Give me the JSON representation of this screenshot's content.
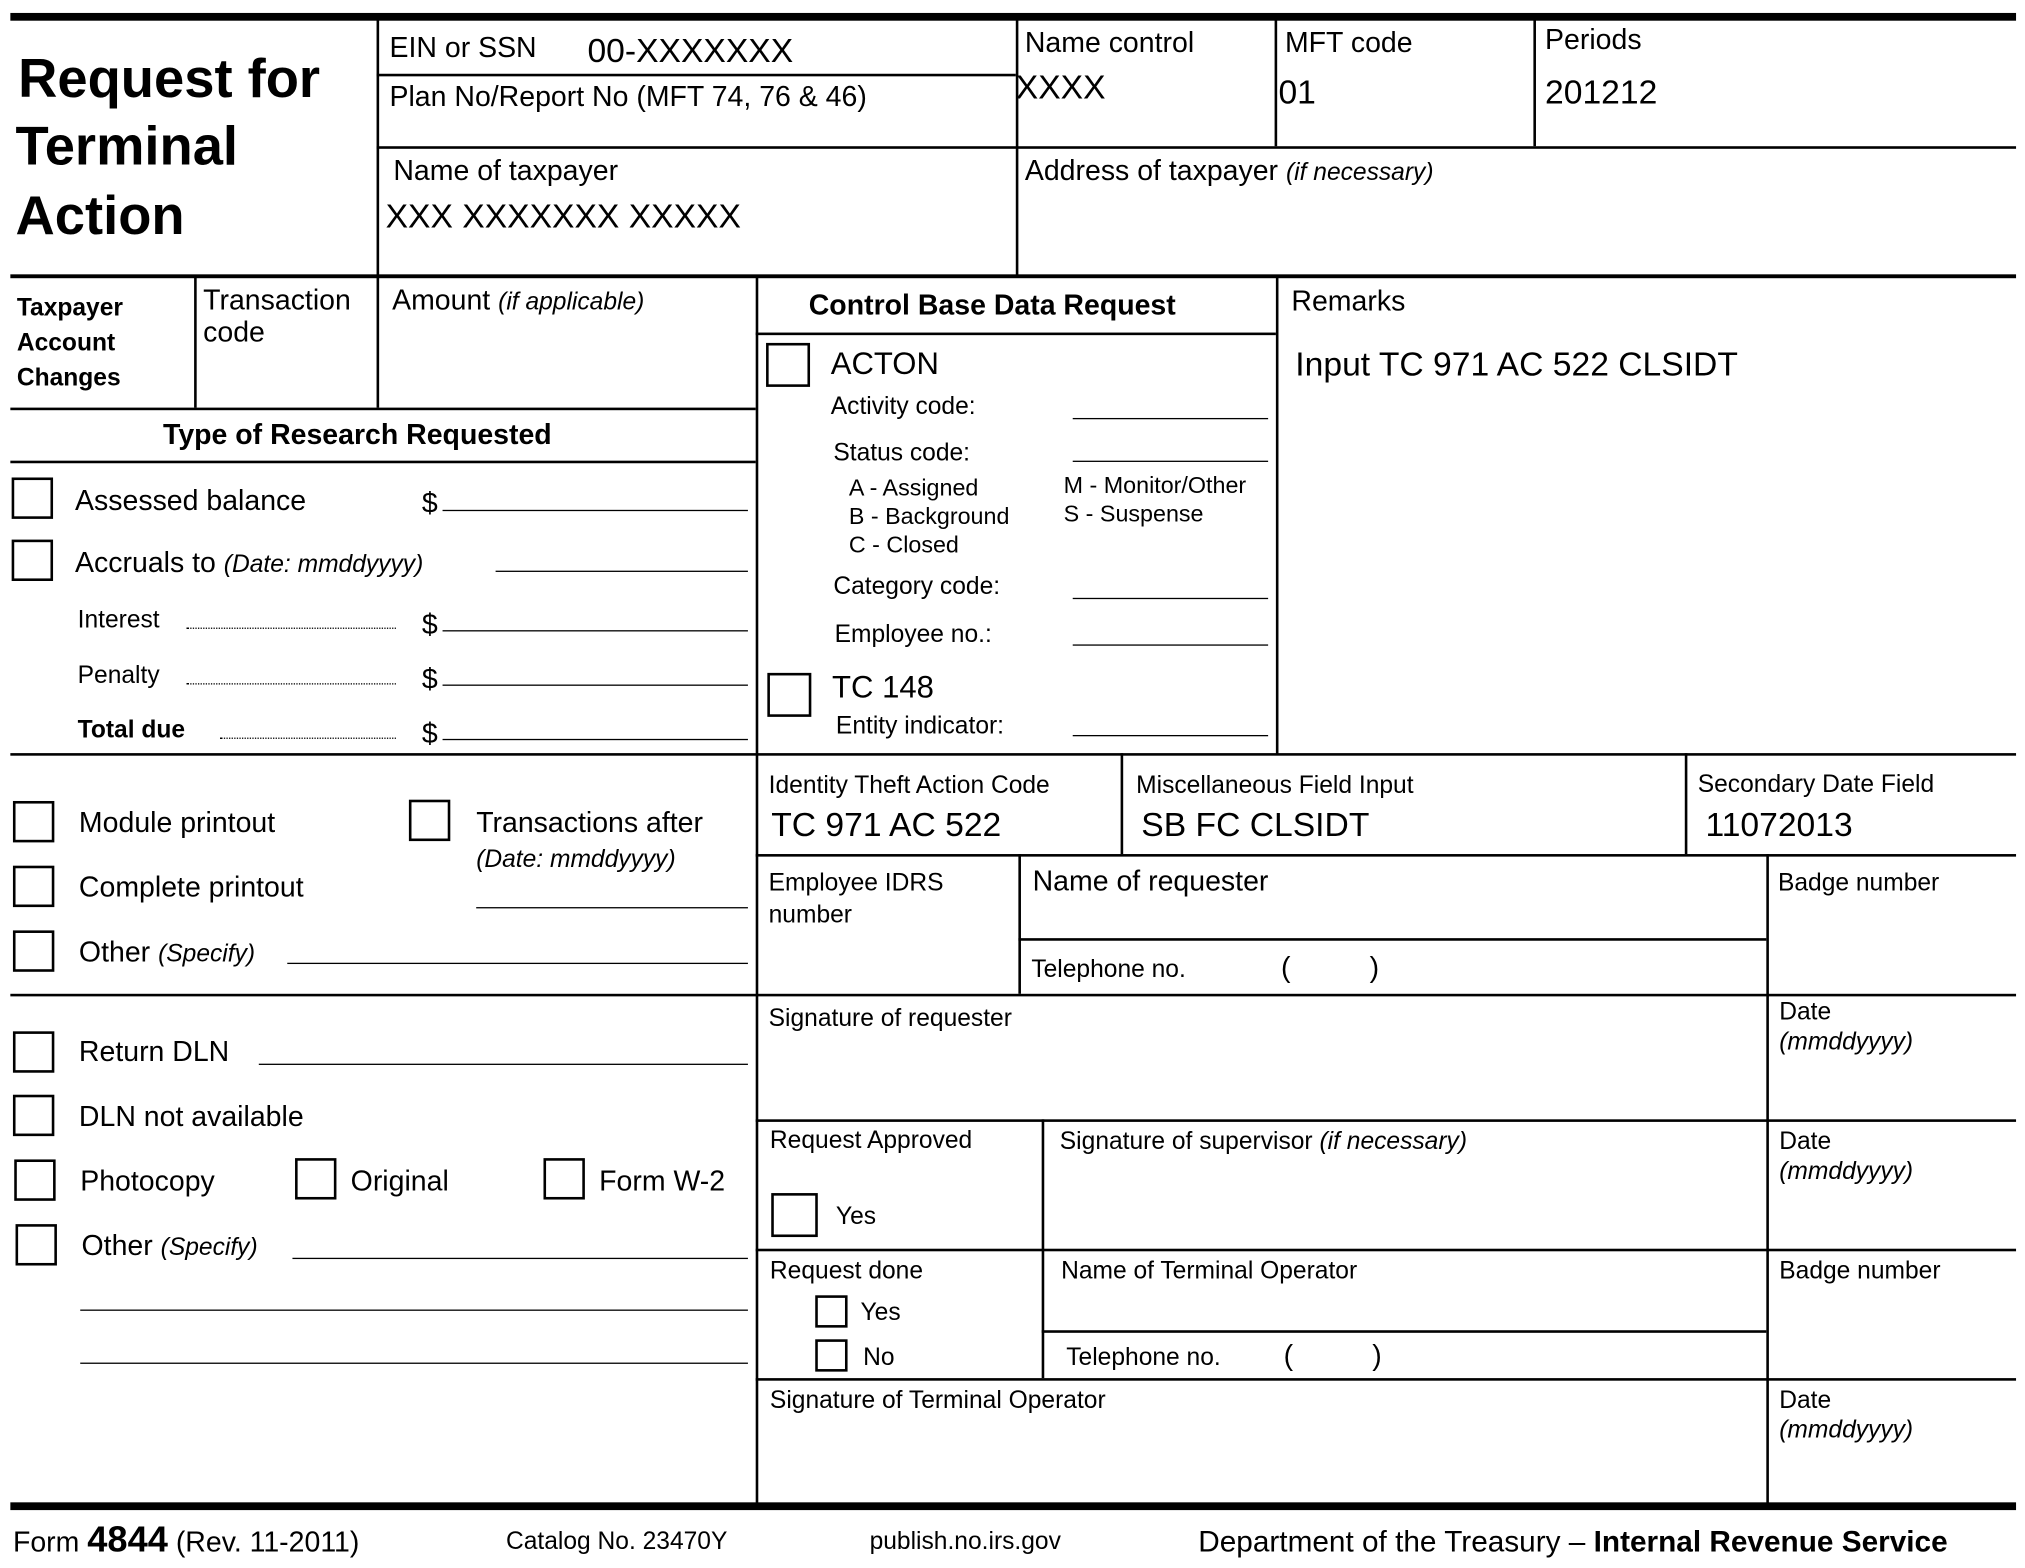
{
  "header": {
    "title_line1": "Request for",
    "title_line2": "Terminal",
    "title_line3": "Action",
    "ein_label": "EIN or SSN",
    "ein_value": "00-XXXXXXX",
    "plan_label": "Plan No/Report No (MFT 74, 76 & 46)",
    "name_control_label": "Name control",
    "name_control_value": "XXXX",
    "mft_label": "MFT code",
    "mft_value": "01",
    "periods_label": "Periods",
    "periods_value": "201212",
    "taxpayer_name_label": "Name of taxpayer",
    "taxpayer_name_value": "XXX XXXXXXX XXXXX",
    "address_label": "Address of taxpayer",
    "address_note": "(if necessary)"
  },
  "account": {
    "label": "Taxpayer Account Changes",
    "label1": "Taxpayer",
    "label2": "Account",
    "label3": "Changes",
    "tc_label1": "Transaction",
    "tc_label2": "code",
    "amount_label": "Amount",
    "amount_note": "(if applicable)"
  },
  "research": {
    "title": "Type of Research Requested",
    "assessed": "Assessed balance",
    "dollar": "$",
    "accruals": "Accruals to",
    "accruals_note": "(Date: mmddyyyy)",
    "interest": "Interest",
    "penalty": "Penalty",
    "total": "Total due",
    "module": "Module printout",
    "complete": "Complete printout",
    "other": "Other",
    "specify": "(Specify)",
    "trans_after": "Transactions after",
    "trans_after_note": "(Date: mmddyyyy)",
    "return_dln": "Return DLN",
    "dln_na": "DLN not available",
    "photocopy": "Photocopy",
    "original": "Original",
    "w2": "Form W-2"
  },
  "control": {
    "title": "Control Base Data Request",
    "acton": "ACTON",
    "activity": "Activity code:",
    "status": "Status code:",
    "a": "A - Assigned",
    "b": "B - Background",
    "c": "C - Closed",
    "m": "M - Monitor/Other",
    "s": "S - Suspense",
    "category": "Category code:",
    "employee": "Employee no.:",
    "tc148": "TC 148",
    "entity": "Entity indicator:"
  },
  "remarks": {
    "label": "Remarks",
    "value": "Input TC 971 AC 522 CLSIDT"
  },
  "idt": {
    "label": "Identity Theft Action Code",
    "value": "TC 971 AC 522",
    "misc_label": "Miscellaneous Field Input",
    "misc_value": "SB FC CLSIDT",
    "sec_label": "Secondary Date Field",
    "sec_value": "11072013"
  },
  "requester": {
    "idrs_label1": "Employee IDRS",
    "idrs_label2": "number",
    "name_label": "Name of requester",
    "badge_label": "Badge number",
    "tel_label": "Telephone no.",
    "paren": "(          )",
    "sig_label": "Signature of requester",
    "date_label": "Date",
    "date_fmt": "(mmddyyyy)"
  },
  "approval": {
    "approved_label": "Request Approved",
    "yes": "Yes",
    "sup_label": "Signature of supervisor",
    "sup_note": "(if necessary)",
    "done_label": "Request done",
    "no": "No",
    "operator_label": "Name of Terminal Operator",
    "op_sig_label": "Signature of Terminal Operator"
  },
  "footer": {
    "form": "Form",
    "number": "4844",
    "rev": "(Rev. 11-2011)",
    "catalog": "Catalog No. 23470Y",
    "site": "publish.no.irs.gov",
    "dept": "Department of the Treasury –",
    "irs": "Internal Revenue Service"
  }
}
